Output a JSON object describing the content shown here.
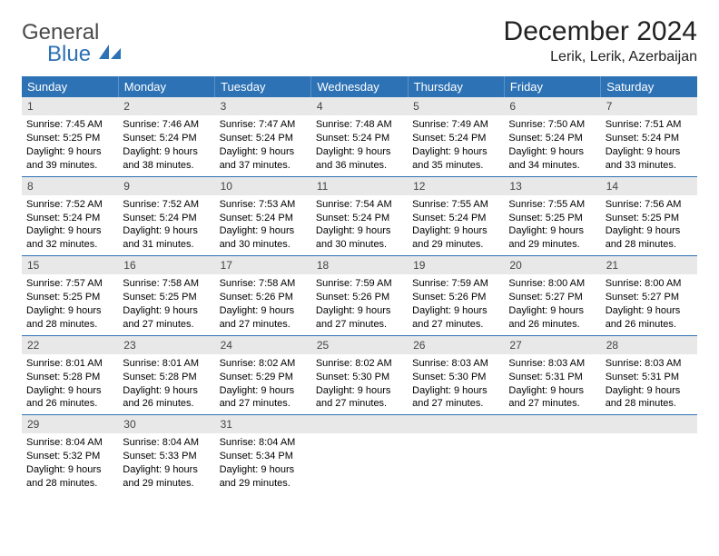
{
  "logo": {
    "word1": "General",
    "word2": "Blue",
    "icon_color": "#2d72b5"
  },
  "title": "December 2024",
  "location": "Lerik, Lerik, Azerbaijan",
  "colors": {
    "header_bg": "#2d72b5",
    "header_text": "#ffffff",
    "daynum_bg": "#e8e8e8",
    "row_border": "#2d72b5"
  },
  "fonts": {
    "title_size": 30,
    "location_size": 16,
    "th_size": 13,
    "cell_size": 11
  },
  "weekdays": [
    "Sunday",
    "Monday",
    "Tuesday",
    "Wednesday",
    "Thursday",
    "Friday",
    "Saturday"
  ],
  "weeks": [
    [
      {
        "n": "1",
        "sr": "7:45 AM",
        "ss": "5:25 PM",
        "dl": "9 hours and 39 minutes."
      },
      {
        "n": "2",
        "sr": "7:46 AM",
        "ss": "5:24 PM",
        "dl": "9 hours and 38 minutes."
      },
      {
        "n": "3",
        "sr": "7:47 AM",
        "ss": "5:24 PM",
        "dl": "9 hours and 37 minutes."
      },
      {
        "n": "4",
        "sr": "7:48 AM",
        "ss": "5:24 PM",
        "dl": "9 hours and 36 minutes."
      },
      {
        "n": "5",
        "sr": "7:49 AM",
        "ss": "5:24 PM",
        "dl": "9 hours and 35 minutes."
      },
      {
        "n": "6",
        "sr": "7:50 AM",
        "ss": "5:24 PM",
        "dl": "9 hours and 34 minutes."
      },
      {
        "n": "7",
        "sr": "7:51 AM",
        "ss": "5:24 PM",
        "dl": "9 hours and 33 minutes."
      }
    ],
    [
      {
        "n": "8",
        "sr": "7:52 AM",
        "ss": "5:24 PM",
        "dl": "9 hours and 32 minutes."
      },
      {
        "n": "9",
        "sr": "7:52 AM",
        "ss": "5:24 PM",
        "dl": "9 hours and 31 minutes."
      },
      {
        "n": "10",
        "sr": "7:53 AM",
        "ss": "5:24 PM",
        "dl": "9 hours and 30 minutes."
      },
      {
        "n": "11",
        "sr": "7:54 AM",
        "ss": "5:24 PM",
        "dl": "9 hours and 30 minutes."
      },
      {
        "n": "12",
        "sr": "7:55 AM",
        "ss": "5:24 PM",
        "dl": "9 hours and 29 minutes."
      },
      {
        "n": "13",
        "sr": "7:55 AM",
        "ss": "5:25 PM",
        "dl": "9 hours and 29 minutes."
      },
      {
        "n": "14",
        "sr": "7:56 AM",
        "ss": "5:25 PM",
        "dl": "9 hours and 28 minutes."
      }
    ],
    [
      {
        "n": "15",
        "sr": "7:57 AM",
        "ss": "5:25 PM",
        "dl": "9 hours and 28 minutes."
      },
      {
        "n": "16",
        "sr": "7:58 AM",
        "ss": "5:25 PM",
        "dl": "9 hours and 27 minutes."
      },
      {
        "n": "17",
        "sr": "7:58 AM",
        "ss": "5:26 PM",
        "dl": "9 hours and 27 minutes."
      },
      {
        "n": "18",
        "sr": "7:59 AM",
        "ss": "5:26 PM",
        "dl": "9 hours and 27 minutes."
      },
      {
        "n": "19",
        "sr": "7:59 AM",
        "ss": "5:26 PM",
        "dl": "9 hours and 27 minutes."
      },
      {
        "n": "20",
        "sr": "8:00 AM",
        "ss": "5:27 PM",
        "dl": "9 hours and 26 minutes."
      },
      {
        "n": "21",
        "sr": "8:00 AM",
        "ss": "5:27 PM",
        "dl": "9 hours and 26 minutes."
      }
    ],
    [
      {
        "n": "22",
        "sr": "8:01 AM",
        "ss": "5:28 PM",
        "dl": "9 hours and 26 minutes."
      },
      {
        "n": "23",
        "sr": "8:01 AM",
        "ss": "5:28 PM",
        "dl": "9 hours and 26 minutes."
      },
      {
        "n": "24",
        "sr": "8:02 AM",
        "ss": "5:29 PM",
        "dl": "9 hours and 27 minutes."
      },
      {
        "n": "25",
        "sr": "8:02 AM",
        "ss": "5:30 PM",
        "dl": "9 hours and 27 minutes."
      },
      {
        "n": "26",
        "sr": "8:03 AM",
        "ss": "5:30 PM",
        "dl": "9 hours and 27 minutes."
      },
      {
        "n": "27",
        "sr": "8:03 AM",
        "ss": "5:31 PM",
        "dl": "9 hours and 27 minutes."
      },
      {
        "n": "28",
        "sr": "8:03 AM",
        "ss": "5:31 PM",
        "dl": "9 hours and 28 minutes."
      }
    ],
    [
      {
        "n": "29",
        "sr": "8:04 AM",
        "ss": "5:32 PM",
        "dl": "9 hours and 28 minutes."
      },
      {
        "n": "30",
        "sr": "8:04 AM",
        "ss": "5:33 PM",
        "dl": "9 hours and 29 minutes."
      },
      {
        "n": "31",
        "sr": "8:04 AM",
        "ss": "5:34 PM",
        "dl": "9 hours and 29 minutes."
      },
      null,
      null,
      null,
      null
    ]
  ],
  "labels": {
    "sunrise": "Sunrise:",
    "sunset": "Sunset:",
    "daylight": "Daylight:"
  }
}
